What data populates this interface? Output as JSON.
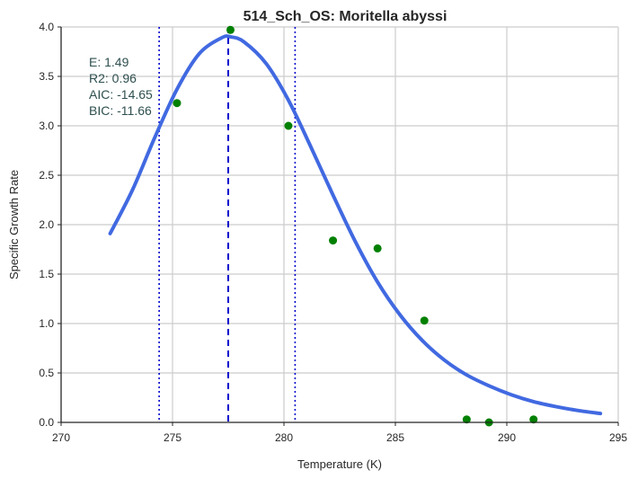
{
  "chart_data": {
    "type": "scatter",
    "title": "514_Sch_OS: Moritella abyssi",
    "xlabel": "Temperature (K)",
    "ylabel": "Specific Growth Rate",
    "xlim": [
      270,
      295
    ],
    "ylim": [
      0,
      4.0
    ],
    "xticks": [
      "270",
      "275",
      "280",
      "285",
      "290",
      "295"
    ],
    "yticks": [
      "0.0",
      "0.5",
      "1.0",
      "1.5",
      "2.0",
      "2.5",
      "3.0",
      "3.5",
      "4.0"
    ],
    "grid": true,
    "points": {
      "color": "#008000",
      "x": [
        275.2,
        277.6,
        280.2,
        282.2,
        284.2,
        286.3,
        288.2,
        289.2,
        291.2
      ],
      "y": [
        3.23,
        3.97,
        3.0,
        1.84,
        1.76,
        1.03,
        0.03,
        0.0,
        0.03
      ]
    },
    "fit_curve": {
      "color": "#4169e1",
      "x": [
        272.2,
        273.2,
        274.2,
        275.2,
        276.2,
        277.2,
        277.6,
        278.2,
        279.2,
        280.2,
        281.2,
        282.2,
        283.2,
        284.2,
        285.2,
        286.2,
        287.2,
        288.2,
        289.2,
        290.2,
        291.2,
        292.2,
        293.2,
        294.2
      ],
      "y": [
        1.91,
        2.35,
        2.88,
        3.37,
        3.73,
        3.89,
        3.9,
        3.85,
        3.63,
        3.26,
        2.79,
        2.3,
        1.83,
        1.42,
        1.09,
        0.83,
        0.63,
        0.48,
        0.37,
        0.28,
        0.21,
        0.16,
        0.12,
        0.09
      ]
    },
    "vlines": [
      {
        "x": 274.4,
        "style": "dotted",
        "color": "#0000cd"
      },
      {
        "x": 277.5,
        "style": "dashed",
        "color": "#0000cd"
      },
      {
        "x": 280.5,
        "style": "dotted",
        "color": "#0000cd"
      }
    ],
    "stats": [
      "E:  1.49",
      "R2:  0.96",
      "AIC: -14.65",
      "BIC: -11.66"
    ]
  }
}
